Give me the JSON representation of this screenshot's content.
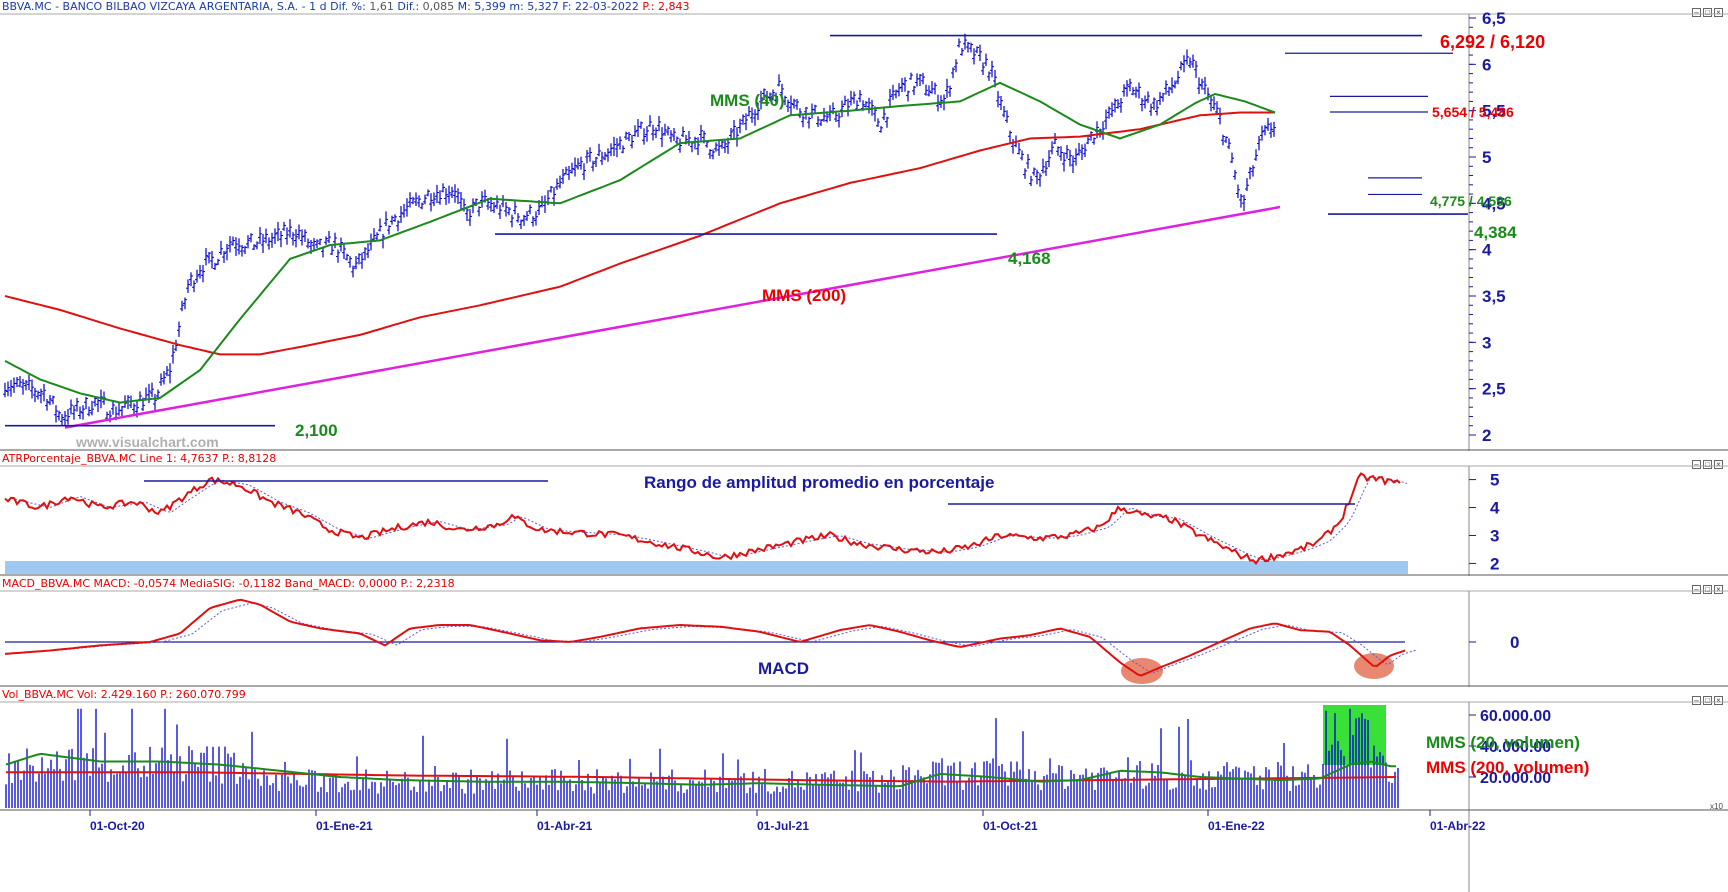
{
  "main": {
    "header": {
      "symbol": "BBVA.MC - BANCO BILBAO VIZCAYA ARGENTARIA, S.A. -  1 d",
      "dif_pct_label": "Dif. %:",
      "dif_pct": "1,61",
      "dif_label": "Dif.:",
      "dif": "0,085",
      "max": "M: 5,399",
      "min": "m: 5,327",
      "date": "F: 22-03-2022",
      "p": "P.: 2,843"
    },
    "y_ticks": [
      "6,5",
      "6",
      "5,5",
      "5",
      "4,5",
      "4",
      "3,5",
      "3",
      "2,5",
      "2"
    ],
    "annotations": {
      "top_resistance": "6,292 / 6,120",
      "mid_resistance": "5,654 / 5,486",
      "support_a": "4,775 / 4,596",
      "support_b": "4,384",
      "level_4168": "4,168",
      "level_2100": "2,100",
      "mms40": "MMS (40)",
      "mms200": "MMS (200)",
      "watermark": "www.visualchart.com"
    },
    "colors": {
      "price": "#0000cc",
      "mms40": "#1a8a1a",
      "mms200": "#e01010",
      "trend": "#e020e0",
      "levels": "#1a1aa0"
    }
  },
  "atr": {
    "header": "ATRPorcentaje_BBVA.MC  Line 1: 4,7637  P.: 8,8128",
    "title": "Rango de amplitud promedio en porcentaje",
    "y_ticks": [
      "5",
      "4",
      "3",
      "2"
    ]
  },
  "macd": {
    "header": "MACD_BBVA.MC  MACD: -0,0574  MediaSIG: -0,1182  Band_MACD: 0,0000  P.: 2,2318",
    "title": "MACD",
    "y_ticks": [
      "0"
    ]
  },
  "vol": {
    "header": "Vol_BBVA.MC  Vol: 2.429.160  P.: 260.070.799",
    "y_ticks": [
      "60.000.00",
      "40.000.00",
      "20.000.00"
    ],
    "mms20": "MMS (20, volumen)",
    "mms200": "MMS (200, volumen)",
    "scale_note": "x10"
  },
  "x_axis": [
    "01-Oct-20",
    "01-Ene-21",
    "01-Abr-21",
    "01-Jul-21",
    "01-Oct-21",
    "01-Ene-22",
    "01-Abr-22"
  ],
  "chart_data": [
    {
      "type": "line",
      "title": "BBVA.MC - BANCO BILBAO VIZCAYA ARGENTARIA, S.A. - 1 d",
      "x": [
        "01-Oct-20",
        "01-Ene-21",
        "01-Abr-21",
        "01-Jul-21",
        "01-Oct-21",
        "01-Ene-22",
        "01-Abr-22"
      ],
      "series": [
        {
          "name": "MMS (40)",
          "values": [
            2.35,
            3.7,
            4.45,
            5.35,
            5.55,
            5.3,
            5.45
          ]
        },
        {
          "name": "MMS (200)",
          "values": [
            2.95,
            2.95,
            3.35,
            4.3,
            5.05,
            5.25,
            5.49
          ]
        }
      ],
      "ylim": [
        1.95,
        6.55
      ],
      "levels": [
        6.292,
        6.12,
        5.654,
        5.486,
        4.775,
        4.596,
        4.384,
        4.168,
        2.1
      ]
    },
    {
      "type": "line",
      "title": "ATRPorcentaje_BBVA.MC",
      "series": [
        {
          "name": "Line 1",
          "values": [
            4.2,
            4.9,
            3.0,
            2.5,
            3.0,
            2.2,
            5.0
          ]
        }
      ],
      "ylim": [
        1.5,
        5.5
      ]
    },
    {
      "type": "line",
      "title": "MACD_BBVA.MC",
      "series": [
        {
          "name": "MACD",
          "values": [
            -0.05,
            0.25,
            0.05,
            0.1,
            0.05,
            -0.2,
            0.1
          ]
        }
      ]
    },
    {
      "type": "bar",
      "title": "Vol_BBVA.MC",
      "series": [
        {
          "name": "MMS (20, volumen)",
          "values": [
            35,
            26,
            20,
            17,
            22,
            25,
            30
          ]
        },
        {
          "name": "MMS (200, volumen)",
          "values": [
            24,
            23,
            21,
            19,
            21,
            20,
            22
          ]
        }
      ],
      "ylim": [
        0,
        65
      ]
    }
  ]
}
